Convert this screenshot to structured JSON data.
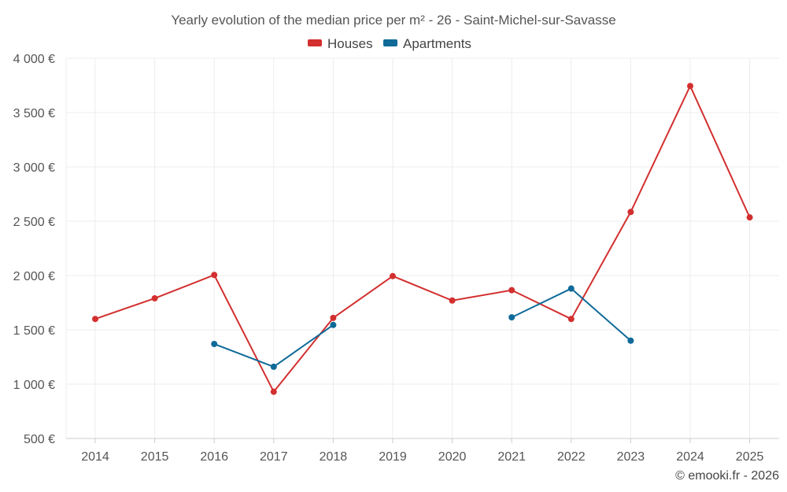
{
  "chart_data": {
    "type": "line",
    "title": "Yearly evolution of the median price per m² - 26 - Saint-Michel-sur-Savasse",
    "categories": [
      "2014",
      "2015",
      "2016",
      "2017",
      "2018",
      "2019",
      "2020",
      "2021",
      "2022",
      "2023",
      "2024",
      "2025"
    ],
    "ylim": [
      500,
      4000
    ],
    "yticks": [
      500,
      1000,
      1500,
      2000,
      2500,
      3000,
      3500,
      4000
    ],
    "ytick_labels": [
      "500 €",
      "1 000 €",
      "1 500 €",
      "2 000 €",
      "2 500 €",
      "3 000 €",
      "3 500 €",
      "4 000 €"
    ],
    "grid": true,
    "legend_position": "top-center",
    "series": [
      {
        "name": "Houses",
        "color": "#d32f2f",
        "values": [
          1600,
          1790,
          2005,
          930,
          1610,
          1995,
          1770,
          1865,
          1600,
          2585,
          3745,
          2535
        ]
      },
      {
        "name": "Apartments",
        "color": "#0f6a99",
        "values": [
          null,
          null,
          1370,
          1160,
          1545,
          null,
          null,
          1615,
          1880,
          1400,
          null,
          null
        ]
      }
    ]
  },
  "credit": "© emooki.fr - 2026"
}
